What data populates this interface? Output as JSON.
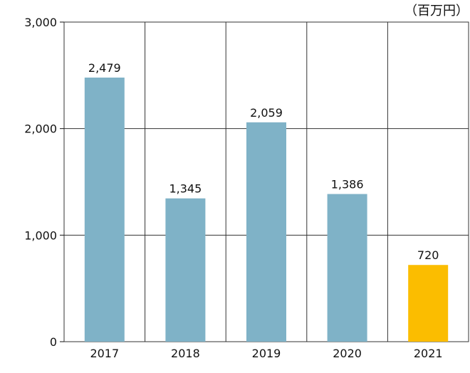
{
  "chart_data": {
    "type": "bar",
    "unit_label": "（百万円）",
    "categories": [
      "2017",
      "2018",
      "2019",
      "2020",
      "2021"
    ],
    "values": [
      2479,
      1345,
      2059,
      1386,
      720
    ],
    "value_labels": [
      "2,479",
      "1,345",
      "2,059",
      "1,386",
      "720"
    ],
    "bar_colors": [
      "#7fb2c7",
      "#7fb2c7",
      "#7fb2c7",
      "#7fb2c7",
      "#fbbd00"
    ],
    "ylim": [
      0,
      3000
    ],
    "yticks": [
      0,
      1000,
      2000,
      3000
    ],
    "ytick_labels": [
      "0",
      "1,000",
      "2,000",
      "3,000"
    ],
    "grid": true,
    "gridline_color": "#333333",
    "axis_color": "#111111",
    "legend": "none"
  }
}
